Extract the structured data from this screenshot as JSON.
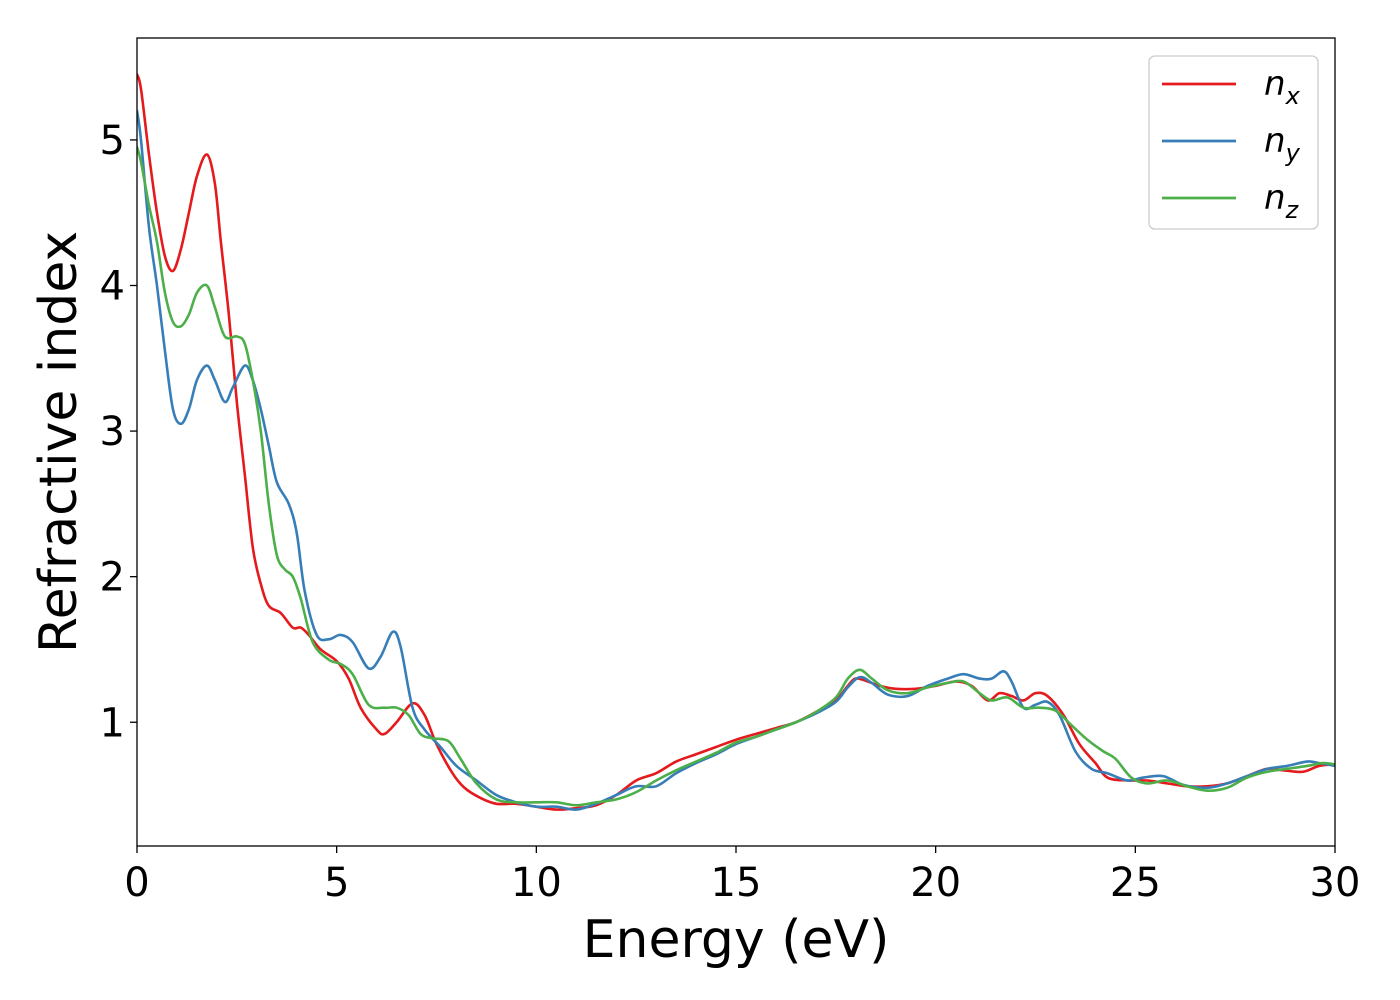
{
  "chart_data": {
    "type": "line",
    "title": "",
    "xlabel": "Energy (eV)",
    "ylabel": "Refractive index",
    "xlim": [
      0,
      30
    ],
    "ylim": [
      0.15,
      5.7
    ],
    "xticks": [
      0,
      5,
      10,
      15,
      20,
      25,
      30
    ],
    "yticks": [
      1,
      2,
      3,
      4,
      5
    ],
    "grid": false,
    "legend": {
      "placement": "top-right"
    },
    "series": [
      {
        "name": "n_x",
        "label_base": "n",
        "label_sub": "x",
        "color": "#e41a1c",
        "points": [
          [
            0,
            5.45
          ],
          [
            0.1,
            5.35
          ],
          [
            0.3,
            4.9
          ],
          [
            0.5,
            4.5
          ],
          [
            0.7,
            4.2
          ],
          [
            0.9,
            4.1
          ],
          [
            1.1,
            4.25
          ],
          [
            1.3,
            4.5
          ],
          [
            1.5,
            4.75
          ],
          [
            1.75,
            4.9
          ],
          [
            1.95,
            4.7
          ],
          [
            2.1,
            4.3
          ],
          [
            2.3,
            3.8
          ],
          [
            2.5,
            3.2
          ],
          [
            2.7,
            2.7
          ],
          [
            2.9,
            2.2
          ],
          [
            3.1,
            1.95
          ],
          [
            3.3,
            1.8
          ],
          [
            3.6,
            1.75
          ],
          [
            3.9,
            1.65
          ],
          [
            4.1,
            1.65
          ],
          [
            4.3,
            1.6
          ],
          [
            4.6,
            1.5
          ],
          [
            5.0,
            1.42
          ],
          [
            5.3,
            1.3
          ],
          [
            5.6,
            1.1
          ],
          [
            6.0,
            0.95
          ],
          [
            6.2,
            0.92
          ],
          [
            6.5,
            1.0
          ],
          [
            6.9,
            1.13
          ],
          [
            7.2,
            1.05
          ],
          [
            7.5,
            0.85
          ],
          [
            7.9,
            0.65
          ],
          [
            8.2,
            0.55
          ],
          [
            8.6,
            0.48
          ],
          [
            9.0,
            0.44
          ],
          [
            9.5,
            0.44
          ],
          [
            10.0,
            0.42
          ],
          [
            10.5,
            0.4
          ],
          [
            11.0,
            0.41
          ],
          [
            11.5,
            0.43
          ],
          [
            12.0,
            0.5
          ],
          [
            12.5,
            0.6
          ],
          [
            13.0,
            0.65
          ],
          [
            13.5,
            0.73
          ],
          [
            14.0,
            0.78
          ],
          [
            14.5,
            0.83
          ],
          [
            15.0,
            0.88
          ],
          [
            15.5,
            0.92
          ],
          [
            16.0,
            0.96
          ],
          [
            16.5,
            1.0
          ],
          [
            17.0,
            1.07
          ],
          [
            17.5,
            1.15
          ],
          [
            17.8,
            1.25
          ],
          [
            18.0,
            1.3
          ],
          [
            18.3,
            1.28
          ],
          [
            18.6,
            1.25
          ],
          [
            19.0,
            1.23
          ],
          [
            19.5,
            1.23
          ],
          [
            20.0,
            1.25
          ],
          [
            20.5,
            1.28
          ],
          [
            20.9,
            1.25
          ],
          [
            21.3,
            1.15
          ],
          [
            21.6,
            1.2
          ],
          [
            21.9,
            1.18
          ],
          [
            22.2,
            1.15
          ],
          [
            22.5,
            1.2
          ],
          [
            22.8,
            1.18
          ],
          [
            23.2,
            1.05
          ],
          [
            23.6,
            0.85
          ],
          [
            24.0,
            0.72
          ],
          [
            24.3,
            0.62
          ],
          [
            24.8,
            0.6
          ],
          [
            25.3,
            0.6
          ],
          [
            25.8,
            0.58
          ],
          [
            26.3,
            0.56
          ],
          [
            26.8,
            0.56
          ],
          [
            27.3,
            0.58
          ],
          [
            27.8,
            0.63
          ],
          [
            28.3,
            0.68
          ],
          [
            28.7,
            0.67
          ],
          [
            29.2,
            0.66
          ],
          [
            29.6,
            0.7
          ],
          [
            30.0,
            0.71
          ]
        ]
      },
      {
        "name": "n_y",
        "label_base": "n",
        "label_sub": "y",
        "color": "#377eb8",
        "points": [
          [
            0,
            5.2
          ],
          [
            0.1,
            5.0
          ],
          [
            0.3,
            4.4
          ],
          [
            0.5,
            4.0
          ],
          [
            0.7,
            3.55
          ],
          [
            0.9,
            3.15
          ],
          [
            1.1,
            3.05
          ],
          [
            1.3,
            3.15
          ],
          [
            1.5,
            3.35
          ],
          [
            1.75,
            3.45
          ],
          [
            1.95,
            3.35
          ],
          [
            2.2,
            3.2
          ],
          [
            2.4,
            3.3
          ],
          [
            2.7,
            3.45
          ],
          [
            2.9,
            3.35
          ],
          [
            3.1,
            3.15
          ],
          [
            3.3,
            2.9
          ],
          [
            3.5,
            2.65
          ],
          [
            3.8,
            2.5
          ],
          [
            4.0,
            2.3
          ],
          [
            4.2,
            1.9
          ],
          [
            4.5,
            1.6
          ],
          [
            4.8,
            1.57
          ],
          [
            5.1,
            1.6
          ],
          [
            5.4,
            1.55
          ],
          [
            5.8,
            1.37
          ],
          [
            6.1,
            1.45
          ],
          [
            6.4,
            1.62
          ],
          [
            6.6,
            1.52
          ],
          [
            6.9,
            1.1
          ],
          [
            7.2,
            0.95
          ],
          [
            7.6,
            0.83
          ],
          [
            8.0,
            0.7
          ],
          [
            8.5,
            0.6
          ],
          [
            9.0,
            0.5
          ],
          [
            9.5,
            0.45
          ],
          [
            10.0,
            0.42
          ],
          [
            10.5,
            0.42
          ],
          [
            11.0,
            0.4
          ],
          [
            11.5,
            0.44
          ],
          [
            12.0,
            0.5
          ],
          [
            12.5,
            0.56
          ],
          [
            13.0,
            0.56
          ],
          [
            13.5,
            0.65
          ],
          [
            14.0,
            0.72
          ],
          [
            14.5,
            0.78
          ],
          [
            15.0,
            0.85
          ],
          [
            15.5,
            0.9
          ],
          [
            16.0,
            0.95
          ],
          [
            16.5,
            1.0
          ],
          [
            17.0,
            1.06
          ],
          [
            17.5,
            1.14
          ],
          [
            17.8,
            1.24
          ],
          [
            18.1,
            1.31
          ],
          [
            18.4,
            1.27
          ],
          [
            18.8,
            1.19
          ],
          [
            19.3,
            1.18
          ],
          [
            19.8,
            1.25
          ],
          [
            20.3,
            1.3
          ],
          [
            20.7,
            1.33
          ],
          [
            21.1,
            1.3
          ],
          [
            21.4,
            1.3
          ],
          [
            21.7,
            1.35
          ],
          [
            21.9,
            1.28
          ],
          [
            22.2,
            1.1
          ],
          [
            22.5,
            1.12
          ],
          [
            22.8,
            1.14
          ],
          [
            23.1,
            1.05
          ],
          [
            23.5,
            0.8
          ],
          [
            23.9,
            0.68
          ],
          [
            24.3,
            0.65
          ],
          [
            24.8,
            0.6
          ],
          [
            25.2,
            0.62
          ],
          [
            25.7,
            0.63
          ],
          [
            26.2,
            0.57
          ],
          [
            26.8,
            0.55
          ],
          [
            27.3,
            0.58
          ],
          [
            27.8,
            0.63
          ],
          [
            28.3,
            0.68
          ],
          [
            28.8,
            0.7
          ],
          [
            29.3,
            0.73
          ],
          [
            29.6,
            0.72
          ],
          [
            30.0,
            0.7
          ]
        ]
      },
      {
        "name": "n_z",
        "label_base": "n",
        "label_sub": "z",
        "color": "#4daf4a",
        "points": [
          [
            0,
            4.95
          ],
          [
            0.1,
            4.85
          ],
          [
            0.3,
            4.55
          ],
          [
            0.5,
            4.3
          ],
          [
            0.7,
            3.95
          ],
          [
            0.9,
            3.75
          ],
          [
            1.1,
            3.72
          ],
          [
            1.3,
            3.8
          ],
          [
            1.5,
            3.95
          ],
          [
            1.75,
            4.0
          ],
          [
            1.95,
            3.85
          ],
          [
            2.2,
            3.65
          ],
          [
            2.5,
            3.65
          ],
          [
            2.7,
            3.6
          ],
          [
            2.9,
            3.35
          ],
          [
            3.1,
            3.0
          ],
          [
            3.3,
            2.5
          ],
          [
            3.5,
            2.15
          ],
          [
            3.7,
            2.05
          ],
          [
            3.9,
            2.0
          ],
          [
            4.1,
            1.85
          ],
          [
            4.4,
            1.55
          ],
          [
            4.8,
            1.43
          ],
          [
            5.1,
            1.4
          ],
          [
            5.4,
            1.33
          ],
          [
            5.8,
            1.12
          ],
          [
            6.2,
            1.1
          ],
          [
            6.5,
            1.1
          ],
          [
            6.8,
            1.05
          ],
          [
            7.1,
            0.92
          ],
          [
            7.4,
            0.89
          ],
          [
            7.8,
            0.87
          ],
          [
            8.1,
            0.75
          ],
          [
            8.5,
            0.58
          ],
          [
            9.0,
            0.47
          ],
          [
            9.5,
            0.45
          ],
          [
            10.0,
            0.45
          ],
          [
            10.5,
            0.45
          ],
          [
            11.0,
            0.43
          ],
          [
            11.5,
            0.45
          ],
          [
            12.0,
            0.47
          ],
          [
            12.5,
            0.52
          ],
          [
            13.0,
            0.6
          ],
          [
            13.5,
            0.67
          ],
          [
            14.0,
            0.73
          ],
          [
            14.5,
            0.79
          ],
          [
            15.0,
            0.86
          ],
          [
            15.5,
            0.9
          ],
          [
            16.0,
            0.95
          ],
          [
            16.5,
            1.0
          ],
          [
            17.0,
            1.07
          ],
          [
            17.5,
            1.17
          ],
          [
            17.8,
            1.3
          ],
          [
            18.1,
            1.36
          ],
          [
            18.4,
            1.3
          ],
          [
            18.8,
            1.22
          ],
          [
            19.3,
            1.2
          ],
          [
            19.8,
            1.24
          ],
          [
            20.3,
            1.27
          ],
          [
            20.7,
            1.28
          ],
          [
            21.1,
            1.2
          ],
          [
            21.4,
            1.15
          ],
          [
            21.8,
            1.17
          ],
          [
            22.2,
            1.1
          ],
          [
            22.6,
            1.1
          ],
          [
            23.0,
            1.08
          ],
          [
            23.4,
            0.98
          ],
          [
            23.8,
            0.88
          ],
          [
            24.2,
            0.8
          ],
          [
            24.5,
            0.75
          ],
          [
            24.9,
            0.62
          ],
          [
            25.3,
            0.58
          ],
          [
            25.8,
            0.6
          ],
          [
            26.3,
            0.56
          ],
          [
            26.8,
            0.53
          ],
          [
            27.3,
            0.55
          ],
          [
            27.8,
            0.62
          ],
          [
            28.3,
            0.66
          ],
          [
            28.8,
            0.68
          ],
          [
            29.3,
            0.7
          ],
          [
            29.7,
            0.72
          ],
          [
            30.0,
            0.71
          ]
        ]
      }
    ]
  }
}
